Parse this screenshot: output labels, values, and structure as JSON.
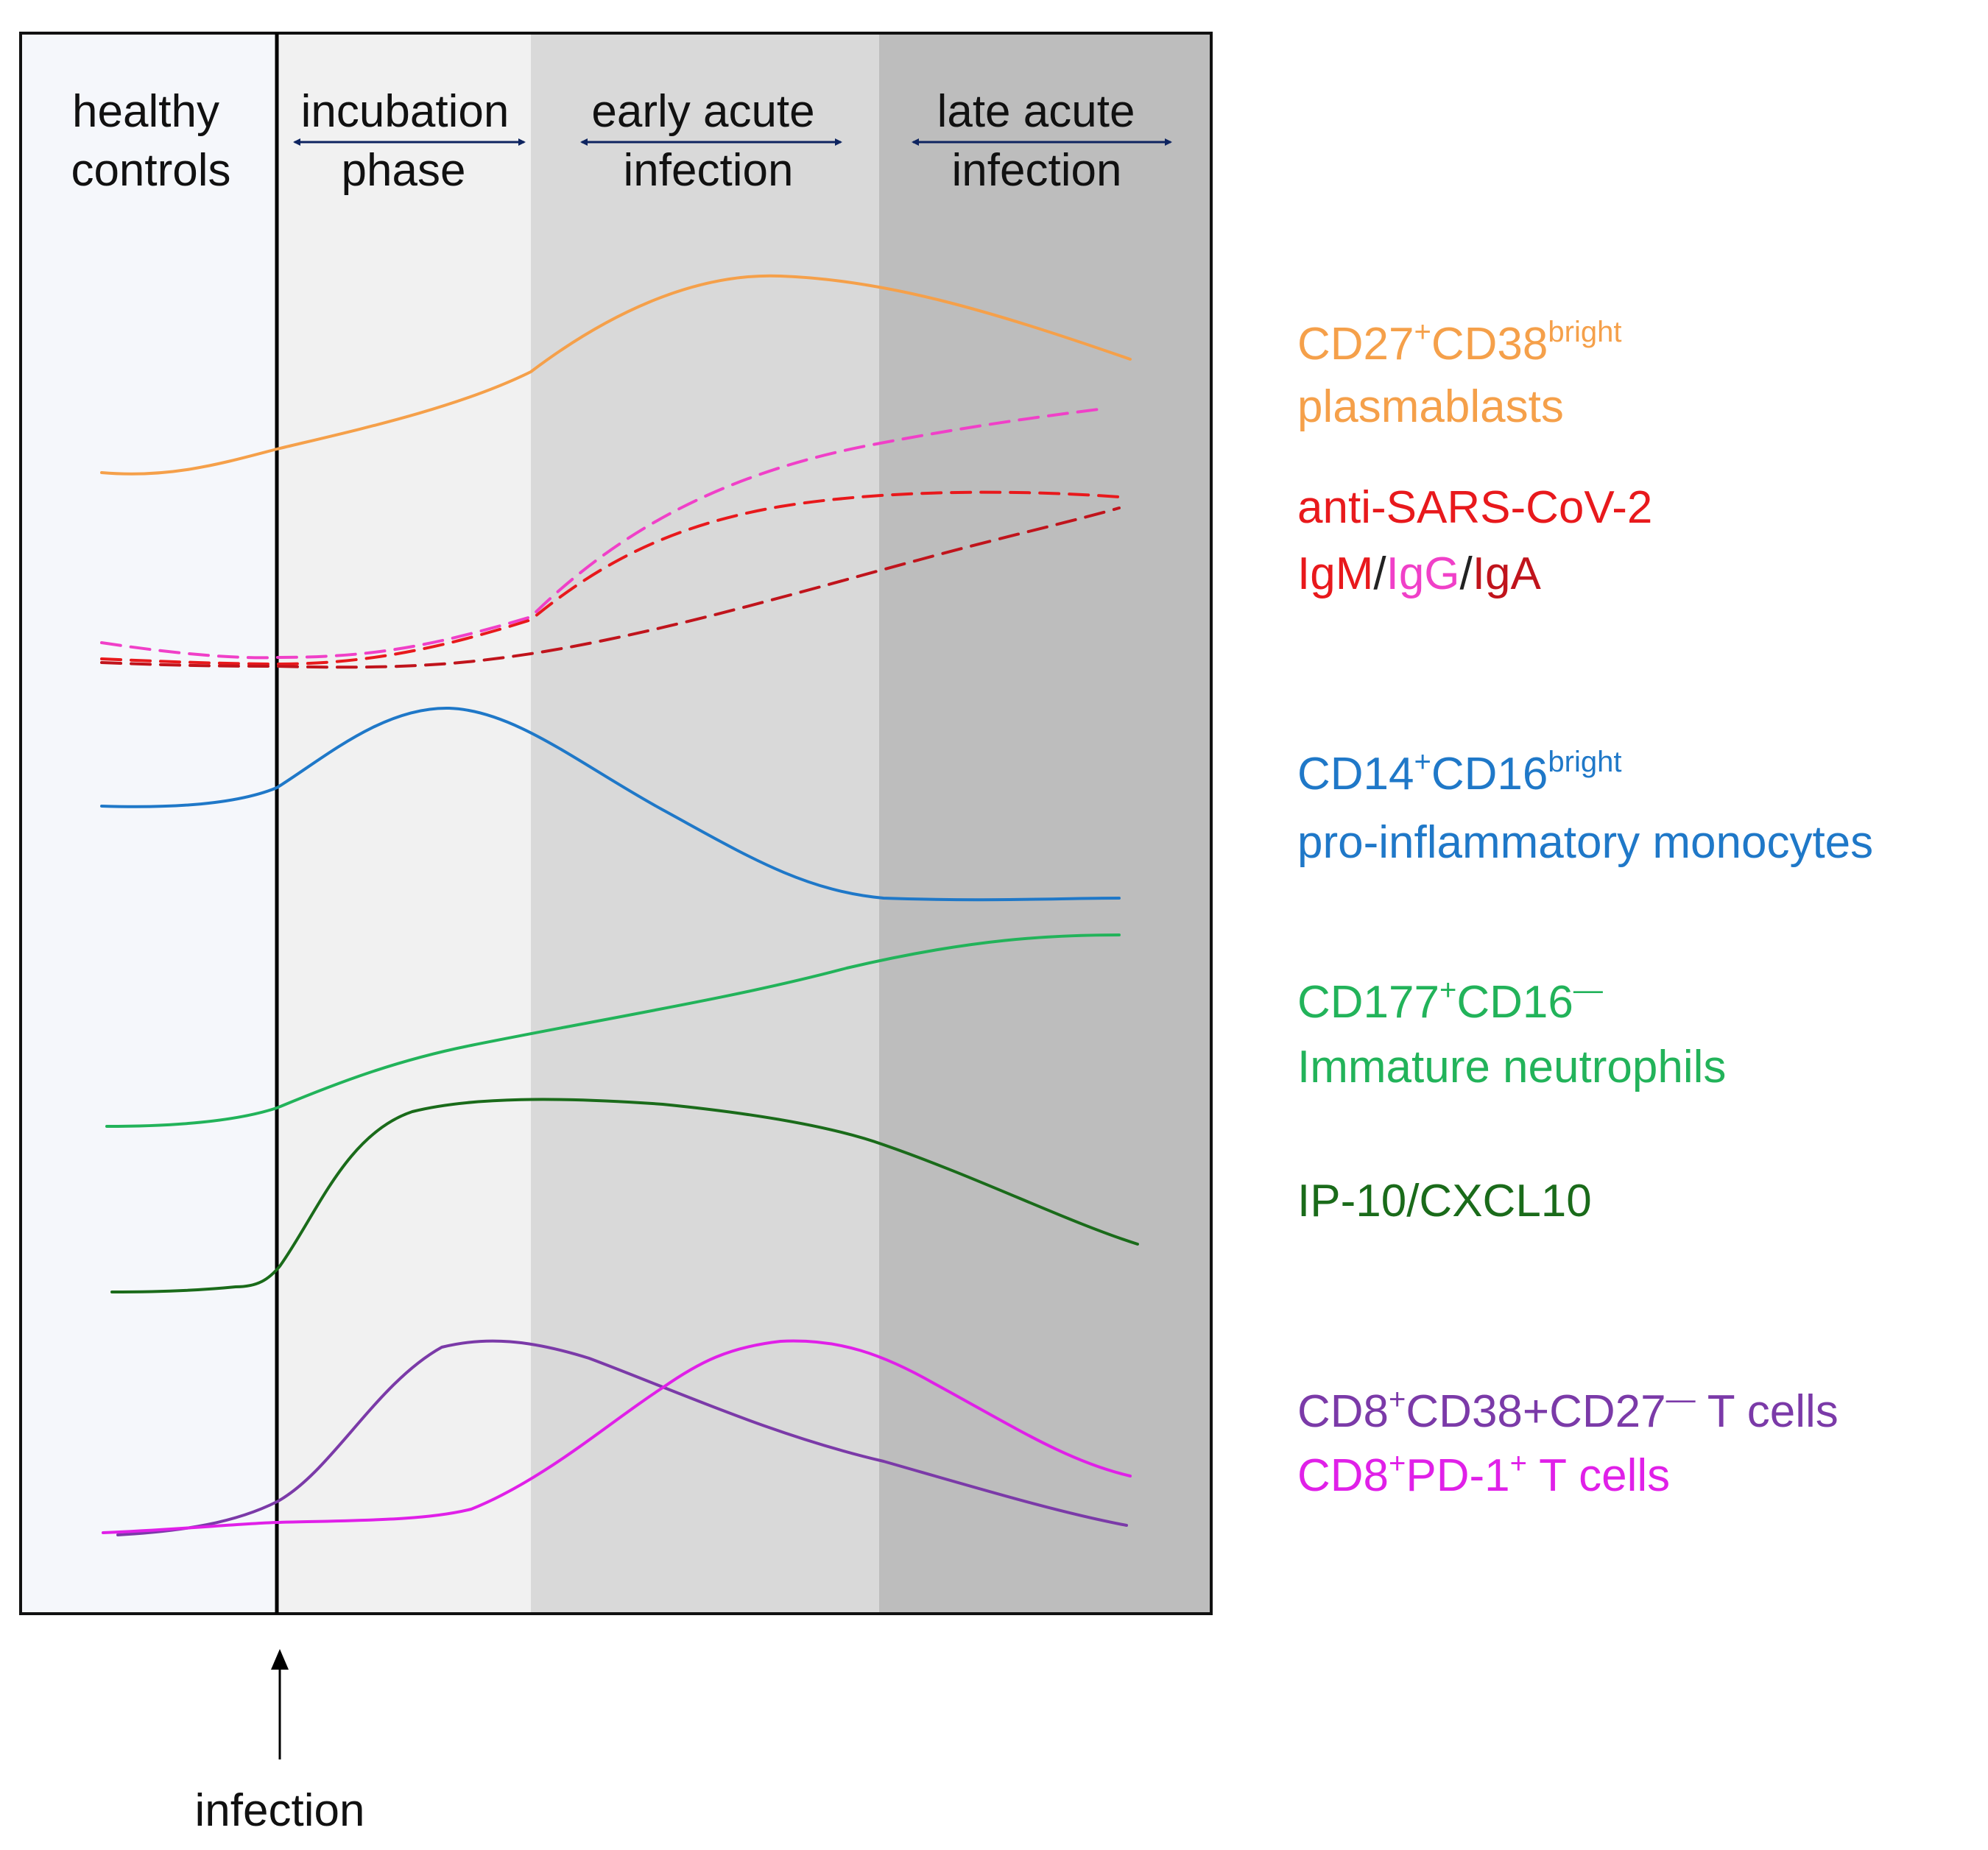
{
  "phases": [
    {
      "id": "healthy",
      "line1": "healthy",
      "line2": "controls",
      "shade": "#f5f7fb",
      "arrow": false
    },
    {
      "id": "incubation",
      "line1": "incubation",
      "line2": "phase",
      "shade": "#f1f1f1",
      "arrow": true
    },
    {
      "id": "early",
      "line1": "early acute",
      "line2": "infection",
      "shade": "#d9d9d9",
      "arrow": true
    },
    {
      "id": "late",
      "line1": "late acute",
      "line2": "infection",
      "shade": "#bdbdbd",
      "arrow": true
    }
  ],
  "infection_label": "infection",
  "arrow_color": "#0e2460",
  "legend": {
    "plasmablasts": {
      "color": "#f5a04a",
      "base1": "CD27",
      "sup1": "+",
      "base2": "CD38",
      "sup2": "bright",
      "line2": "plasmablasts"
    },
    "antibodies": {
      "color": "#e8191c",
      "line1": "anti-SARS-CoV-2",
      "igm": "IgM",
      "slash1": "/",
      "igg": "IgG",
      "slash2": "/",
      "iga": "IgA",
      "igm_color": "#e8191c",
      "igg_color": "#f040c8",
      "iga_color": "#c0141c",
      "slash_color": "#222222"
    },
    "monocytes": {
      "color": "#1f78c8",
      "base1": "CD14",
      "sup1": "+",
      "base2": "CD16",
      "sup2": "bright",
      "line2": "pro-inflammatory monocytes"
    },
    "neutrophils": {
      "color": "#22b35a",
      "base1": "CD177",
      "sup1": "+",
      "base2": "CD16",
      "sup2": "—",
      "line2": "Immature neutrophils"
    },
    "cxcl10": {
      "color": "#1a6b1a",
      "line1": "IP-10/CXCL10"
    },
    "tcells1": {
      "color": "#7b3aa8",
      "base1": "CD8",
      "sup1": "+",
      "mid": "CD38+CD27",
      "sup2": "—",
      "tail": " T cells"
    },
    "tcells2": {
      "color": "#e020e8",
      "base1": "CD8",
      "sup1": "+",
      "mid": "PD-1",
      "sup2": "+",
      "tail": " T cells"
    }
  },
  "curves": [
    {
      "name": "curve-plasmablasts",
      "color": "#f5a04a",
      "dashed": false
    },
    {
      "name": "curve-igg",
      "color": "#f040c8",
      "dashed": true
    },
    {
      "name": "curve-igm",
      "color": "#e8191c",
      "dashed": true
    },
    {
      "name": "curve-iga",
      "color": "#c0141c",
      "dashed": true
    },
    {
      "name": "curve-monocytes",
      "color": "#1f78c8",
      "dashed": false
    },
    {
      "name": "curve-neutrophils",
      "color": "#22b35a",
      "dashed": false
    },
    {
      "name": "curve-cxcl10",
      "color": "#1a6b1a",
      "dashed": false
    },
    {
      "name": "curve-cd38-cd27-tcells",
      "color": "#7b3aa8",
      "dashed": false
    },
    {
      "name": "curve-pd1-tcells",
      "color": "#e020e8",
      "dashed": false
    }
  ]
}
